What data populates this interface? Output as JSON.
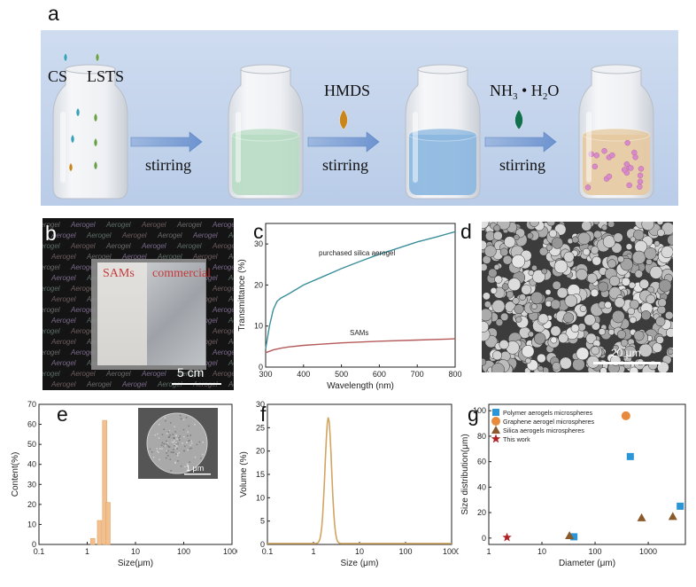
{
  "panel_labels": {
    "a": "a",
    "b": "b",
    "c": "c",
    "d": "d",
    "e": "e",
    "f": "f",
    "g": "g"
  },
  "scheme": {
    "reagent_1": "CS",
    "reagent_2": "LSTS",
    "reagent_3": "HMDS",
    "reagent_4_base": "NH",
    "reagent_4_sub1": "3",
    "reagent_4_dot": " • H",
    "reagent_4_sub2": "2",
    "reagent_4_tail": "O",
    "step_label": "stirring",
    "colors": {
      "banner": "#c3d4ec",
      "liquid_green": "#b8dcc4",
      "liquid_blue": "#8bb7e0",
      "liquid_tan": "#e6c9a0",
      "drop_hmds": "#c9861c",
      "drop_nh3": "#13704e",
      "particle": "#d98bc8"
    }
  },
  "photo": {
    "label_sams": "SAMs",
    "label_commercial": "commercial",
    "scale_bar": "5 cm",
    "background_word": "Aerogel"
  },
  "sem_d": {
    "scale_bar": "20 μm"
  },
  "sem_inset": {
    "scale_bar": "1 μm"
  },
  "chart_data": [
    {
      "panel": "c",
      "type": "line",
      "xlabel": "Wavelength (nm)",
      "ylabel": "Transmittance (%)",
      "xlim": [
        300,
        800
      ],
      "ylim": [
        0,
        35
      ],
      "xticks": [
        300,
        400,
        500,
        600,
        700,
        800
      ],
      "yticks": [
        0,
        10,
        20,
        30
      ],
      "series": [
        {
          "name": "purchased silica aerogel",
          "color": "#3a8f9a",
          "x": [
            300,
            310,
            320,
            330,
            340,
            360,
            400,
            450,
            500,
            550,
            600,
            650,
            700,
            750,
            800
          ],
          "y": [
            4.5,
            10,
            14,
            16,
            16.8,
            17.8,
            20,
            22,
            24,
            25.8,
            27.5,
            29,
            30.5,
            31.7,
            33
          ]
        },
        {
          "name": "SAMs",
          "color": "#b55a5a",
          "x": [
            300,
            320,
            340,
            360,
            400,
            450,
            500,
            600,
            700,
            800
          ],
          "y": [
            3.5,
            4.2,
            4.6,
            4.9,
            5.3,
            5.6,
            5.9,
            6.3,
            6.6,
            6.9
          ]
        }
      ]
    },
    {
      "panel": "e",
      "type": "bar",
      "xlabel": "Size(μm)",
      "ylabel": "Content(%)",
      "xscale": "log",
      "xlim": [
        0.1,
        1000
      ],
      "ylim": [
        0,
        70
      ],
      "xticks": [
        "0.1",
        "1",
        "10",
        "100",
        "1000"
      ],
      "yticks": [
        0,
        10,
        20,
        30,
        40,
        50,
        60,
        70
      ],
      "color": "#f2c08f",
      "x": [
        1.3,
        1.8,
        2.3,
        2.7
      ],
      "values": [
        3,
        12,
        62,
        21
      ]
    },
    {
      "panel": "f",
      "type": "line",
      "xlabel": "Size (μm)",
      "ylabel": "Volume (%)",
      "xscale": "log",
      "xlim": [
        0.1,
        1000
      ],
      "ylim": [
        0,
        30
      ],
      "xticks": [
        "0.1",
        "1",
        "10",
        "100",
        "1000"
      ],
      "yticks": [
        0,
        5,
        10,
        15,
        20,
        25,
        30
      ],
      "color": "#d1a45f",
      "peak_x": 2.1,
      "peak_y": 27,
      "baseline": 0.2
    },
    {
      "panel": "g",
      "type": "scatter",
      "xlabel": "Diameter (μm)",
      "ylabel": "Size distribution(μm)",
      "xscale": "log",
      "xlim": [
        1,
        5000
      ],
      "ylim": [
        -5,
        105
      ],
      "xticks": [
        "1",
        "10",
        "100",
        "1000"
      ],
      "yticks": [
        0,
        20,
        40,
        60,
        80,
        100
      ],
      "series": [
        {
          "name": "Polymer aerogels microspheres",
          "marker": "square",
          "color": "#2b95d6",
          "x": [
            40,
            460,
            4000
          ],
          "y": [
            1,
            64,
            25
          ]
        },
        {
          "name": "Graphene aerogel microspheres",
          "marker": "circle",
          "color": "#e88a3c",
          "x": [
            380
          ],
          "y": [
            96
          ]
        },
        {
          "name": "Silica aerogels microspheres",
          "marker": "triangle",
          "color": "#8a5a2b",
          "x": [
            33,
            750,
            2900
          ],
          "y": [
            2,
            16,
            17
          ]
        },
        {
          "name": "This work",
          "marker": "star",
          "color": "#b02222",
          "x": [
            2.2
          ],
          "y": [
            0.5
          ]
        }
      ]
    }
  ]
}
